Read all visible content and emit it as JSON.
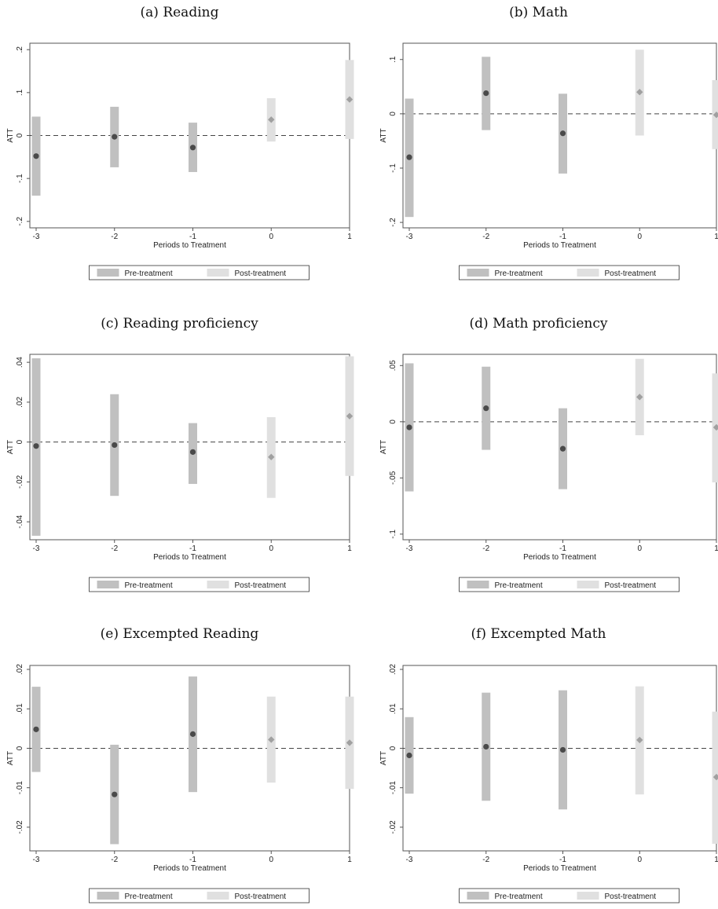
{
  "xlabel": "Periods to Treatment",
  "ylabel": "ATT",
  "legend": [
    "Pre-treatment",
    "Post-treatment"
  ],
  "colors": {
    "pre_band": "#c0c0c0",
    "post_band": "#e0e0e0",
    "pre_point": "#4a4a4a",
    "post_point": "#a0a0a0",
    "zero_line": "#444444",
    "frame": "#555555"
  },
  "chart_data": [
    {
      "type": "scatter",
      "title": "(a) Reading",
      "x": [
        -3,
        -2,
        -1,
        0,
        1
      ],
      "xticks": [
        "-3",
        "-2",
        "-1",
        "0",
        "1"
      ],
      "ylim": [
        -0.215,
        0.215
      ],
      "yticks": [
        -0.2,
        -0.1,
        0,
        0.1,
        0.2
      ],
      "ytick_labels": [
        "-.2",
        "-.1",
        "0",
        ".1",
        ".2"
      ],
      "series": [
        {
          "name": "Pre-treatment",
          "x": [
            -3,
            -2,
            -1
          ],
          "estimate": [
            -0.048,
            -0.003,
            -0.028
          ],
          "lower": [
            -0.14,
            -0.074,
            -0.085
          ],
          "upper": [
            0.044,
            0.067,
            0.03
          ]
        },
        {
          "name": "Post-treatment",
          "x": [
            0,
            1
          ],
          "estimate": [
            0.037,
            0.084
          ],
          "lower": [
            -0.014,
            -0.008
          ],
          "upper": [
            0.087,
            0.176
          ]
        }
      ]
    },
    {
      "type": "scatter",
      "title": "(b) Math",
      "x": [
        -3,
        -2,
        -1,
        0,
        1
      ],
      "xticks": [
        "-3",
        "-2",
        "-1",
        "0",
        "1"
      ],
      "ylim": [
        -0.21,
        0.13
      ],
      "yticks": [
        -0.2,
        -0.1,
        0,
        0.1
      ],
      "ytick_labels": [
        "-.2",
        "-.1",
        "0",
        ".1"
      ],
      "series": [
        {
          "name": "Pre-treatment",
          "x": [
            -3,
            -2,
            -1
          ],
          "estimate": [
            -0.08,
            0.038,
            -0.036
          ],
          "lower": [
            -0.19,
            -0.03,
            -0.11
          ],
          "upper": [
            0.028,
            0.105,
            0.037
          ]
        },
        {
          "name": "Post-treatment",
          "x": [
            0,
            1
          ],
          "estimate": [
            0.04,
            -0.002
          ],
          "lower": [
            -0.04,
            -0.065
          ],
          "upper": [
            0.118,
            0.062
          ]
        }
      ]
    },
    {
      "type": "scatter",
      "title": "(c) Reading proficiency",
      "x": [
        -3,
        -2,
        -1,
        0,
        1
      ],
      "xticks": [
        "-3",
        "-2",
        "-1",
        "0",
        "1"
      ],
      "ylim": [
        -0.049,
        0.044
      ],
      "yticks": [
        -0.04,
        -0.02,
        0,
        0.02,
        0.04
      ],
      "ytick_labels": [
        "-.04",
        "-.02",
        "0",
        ".02",
        ".04"
      ],
      "series": [
        {
          "name": "Pre-treatment",
          "x": [
            -3,
            -2,
            -1
          ],
          "estimate": [
            -0.002,
            -0.0015,
            -0.005
          ],
          "lower": [
            -0.047,
            -0.027,
            -0.021
          ],
          "upper": [
            0.042,
            0.024,
            0.0095
          ]
        },
        {
          "name": "Post-treatment",
          "x": [
            0,
            1
          ],
          "estimate": [
            -0.0075,
            0.013
          ],
          "lower": [
            -0.028,
            -0.017
          ],
          "upper": [
            0.0125,
            0.043
          ]
        }
      ]
    },
    {
      "type": "scatter",
      "title": "(d) Math proficiency",
      "x": [
        -3,
        -2,
        -1,
        0,
        1
      ],
      "xticks": [
        "-3",
        "-2",
        "-1",
        "0",
        "1"
      ],
      "ylim": [
        -0.105,
        0.06
      ],
      "yticks": [
        -0.1,
        -0.05,
        0,
        0.05
      ],
      "ytick_labels": [
        "-.1",
        "-.05",
        "0",
        ".05"
      ],
      "series": [
        {
          "name": "Pre-treatment",
          "x": [
            -3,
            -2,
            -1
          ],
          "estimate": [
            -0.005,
            0.012,
            -0.024
          ],
          "lower": [
            -0.062,
            -0.025,
            -0.06
          ],
          "upper": [
            0.052,
            0.049,
            0.012
          ]
        },
        {
          "name": "Post-treatment",
          "x": [
            0,
            1
          ],
          "estimate": [
            0.022,
            -0.005
          ],
          "lower": [
            -0.012,
            -0.054
          ],
          "upper": [
            0.056,
            0.043
          ]
        }
      ]
    },
    {
      "type": "scatter",
      "title": "(e) Excempted Reading",
      "x": [
        -3,
        -2,
        -1,
        0,
        1
      ],
      "xticks": [
        "-3",
        "-2",
        "-1",
        "0",
        "1"
      ],
      "ylim": [
        -0.026,
        0.021
      ],
      "yticks": [
        -0.02,
        -0.01,
        0,
        0.01,
        0.02
      ],
      "ytick_labels": [
        "-.02",
        "-.01",
        "0",
        ".01",
        ".02"
      ],
      "series": [
        {
          "name": "Pre-treatment",
          "x": [
            -3,
            -2,
            -1
          ],
          "estimate": [
            0.0048,
            -0.0117,
            0.0036
          ],
          "lower": [
            -0.006,
            -0.0243,
            -0.0111
          ],
          "upper": [
            0.0156,
            0.0009,
            0.0182
          ]
        },
        {
          "name": "Post-treatment",
          "x": [
            0,
            1
          ],
          "estimate": [
            0.0022,
            0.0014
          ],
          "lower": [
            -0.0087,
            -0.0103
          ],
          "upper": [
            0.0131,
            0.0131
          ]
        }
      ]
    },
    {
      "type": "scatter",
      "title": "(f) Excempted Math",
      "x": [
        -3,
        -2,
        -1,
        0,
        1
      ],
      "xticks": [
        "-3",
        "-2",
        "-1",
        "0",
        "1"
      ],
      "ylim": [
        -0.026,
        0.021
      ],
      "yticks": [
        -0.02,
        -0.01,
        0,
        0.01,
        0.02
      ],
      "ytick_labels": [
        "-.02",
        "-.01",
        "0",
        ".01",
        ".02"
      ],
      "series": [
        {
          "name": "Pre-treatment",
          "x": [
            -3,
            -2,
            -1
          ],
          "estimate": [
            -0.0018,
            0.0004,
            -0.0004
          ],
          "lower": [
            -0.0115,
            -0.0133,
            -0.0155
          ],
          "upper": [
            0.0079,
            0.0141,
            0.0147
          ]
        },
        {
          "name": "Post-treatment",
          "x": [
            0,
            1
          ],
          "estimate": [
            0.0021,
            -0.0073
          ],
          "lower": [
            -0.0117,
            -0.0242
          ],
          "upper": [
            0.0157,
            0.0093
          ]
        }
      ]
    }
  ]
}
